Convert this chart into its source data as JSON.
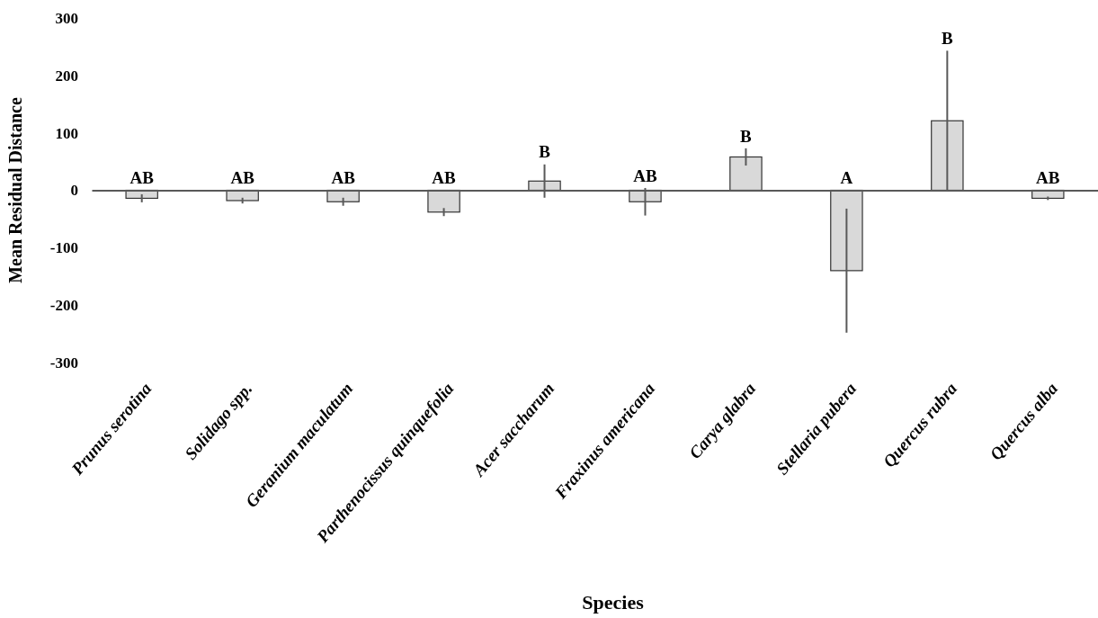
{
  "chart_data": {
    "type": "bar",
    "xlabel": "Species",
    "ylabel": "Mean Residual Distance",
    "categories": [
      "Prunus serotina",
      "Solidago spp.",
      "Geranium maculatum",
      "Parthenocissus quinquefolia",
      "Acer saccharum",
      "Fraxinus americana",
      "Carya glabra",
      "Stellaria pubera",
      "Quercus rubra",
      "Quercus alba"
    ],
    "values": [
      -14,
      -18,
      -20,
      -38,
      16,
      -20,
      58,
      -140,
      121,
      -14
    ],
    "errors": [
      7,
      5,
      7,
      7,
      29,
      24,
      15,
      108,
      122,
      3
    ],
    "color": "#d9d9d9",
    "ylim": [
      -300,
      300
    ],
    "yticks": [
      -300,
      -200,
      -100,
      0,
      100,
      200,
      300
    ],
    "annotations": [
      "AB",
      "AB",
      "AB",
      "AB",
      "B",
      "AB",
      "B",
      "A",
      "B",
      "AB"
    ]
  }
}
